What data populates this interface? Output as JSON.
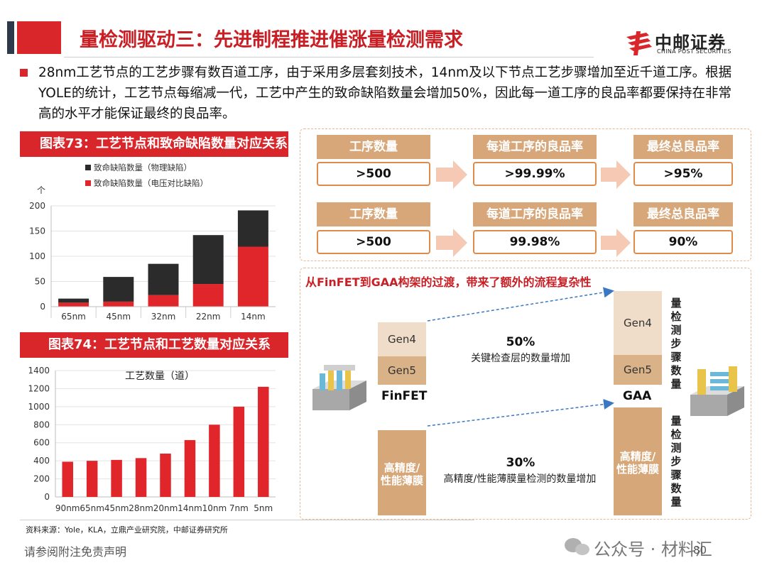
{
  "header": {
    "title": "量检测驱动三：先进制程推进催涨量检测需求",
    "logo_cn": "中邮证券",
    "logo_en": "CHINA POST SECURITIES"
  },
  "intro": "28nm工艺节点的工艺步骤有数百道工序，由于采用多层套刻技术，14nm及以下节点工艺步骤增加至近千道工序。根据YOLE的统计，工艺节点每缩减一代，工艺中产生的致命缺陷数量会增加50%，因此每一道工序的良品率都要保持在非常高的水平才能保证最终的良品率。",
  "chart73": {
    "panel_title": "图表73：工艺节点和致命缺陷数量对应关系",
    "chart_data": {
      "type": "bar",
      "stacked": true,
      "unit_label": "个",
      "categories": [
        "65nm",
        "45nm",
        "32nm",
        "22nm",
        "14nm"
      ],
      "series": [
        {
          "name": "致命缺陷数量（物理缺陷）",
          "color": "#2b2b2b",
          "values": [
            8,
            49,
            62,
            97,
            72
          ]
        },
        {
          "name": "致命缺陷数量（电压对比缺陷）",
          "color": "#e0262b",
          "values": [
            8,
            10,
            23,
            45,
            119
          ]
        }
      ],
      "ylim": [
        0,
        200
      ],
      "yticks": [
        0,
        50,
        100,
        150,
        200
      ],
      "legend_position": "top"
    }
  },
  "chart74": {
    "panel_title": "图表74：工艺节点和工艺数量对应关系",
    "chart_data": {
      "type": "bar",
      "title": "工艺数量（道）",
      "categories": [
        "90nm",
        "65nm",
        "45nm",
        "28nm",
        "20nm",
        "14nm",
        "10nm",
        "7nm",
        "5nm"
      ],
      "values": [
        390,
        400,
        410,
        430,
        480,
        630,
        800,
        1000,
        1220
      ],
      "color": "#e0262b",
      "ylim": [
        0,
        1400
      ],
      "yticks": [
        0,
        200,
        400,
        600,
        800,
        1000,
        1200,
        1400
      ]
    }
  },
  "flow": {
    "rows": [
      {
        "labels": [
          "工序数量",
          "每道工序的良品率",
          "最终总良品率"
        ],
        "values": [
          ">500",
          ">99.99%",
          ">95%"
        ]
      },
      {
        "labels": [
          "工序数量",
          "每道工序的良品率",
          "最终总良品率"
        ],
        "values": [
          ">500",
          "99.98%",
          "90%"
        ]
      }
    ]
  },
  "gaa": {
    "title": "从FinFET到GAA构架的过渡，带来了额外的流程复杂性",
    "finfet_label": "FinFET",
    "gaa_label": "GAA",
    "gen4": "Gen4",
    "gen5": "Gen5",
    "pct_top": "50%",
    "desc_top": "关键检查层的数量增加",
    "film_label": "高精度/性能薄膜",
    "pct_bottom": "30%",
    "desc_bottom": "高精度/性能薄膜量检测的数量增加",
    "vert_label": "量检测步骤数量"
  },
  "footer": {
    "source": "资料来源：Yole，KLA，立鼎产业研究院，中邮证券研究所",
    "disclaimer": "请参阅附注免责声明",
    "page": "80",
    "wechat": "公众号 · 材料汇"
  }
}
